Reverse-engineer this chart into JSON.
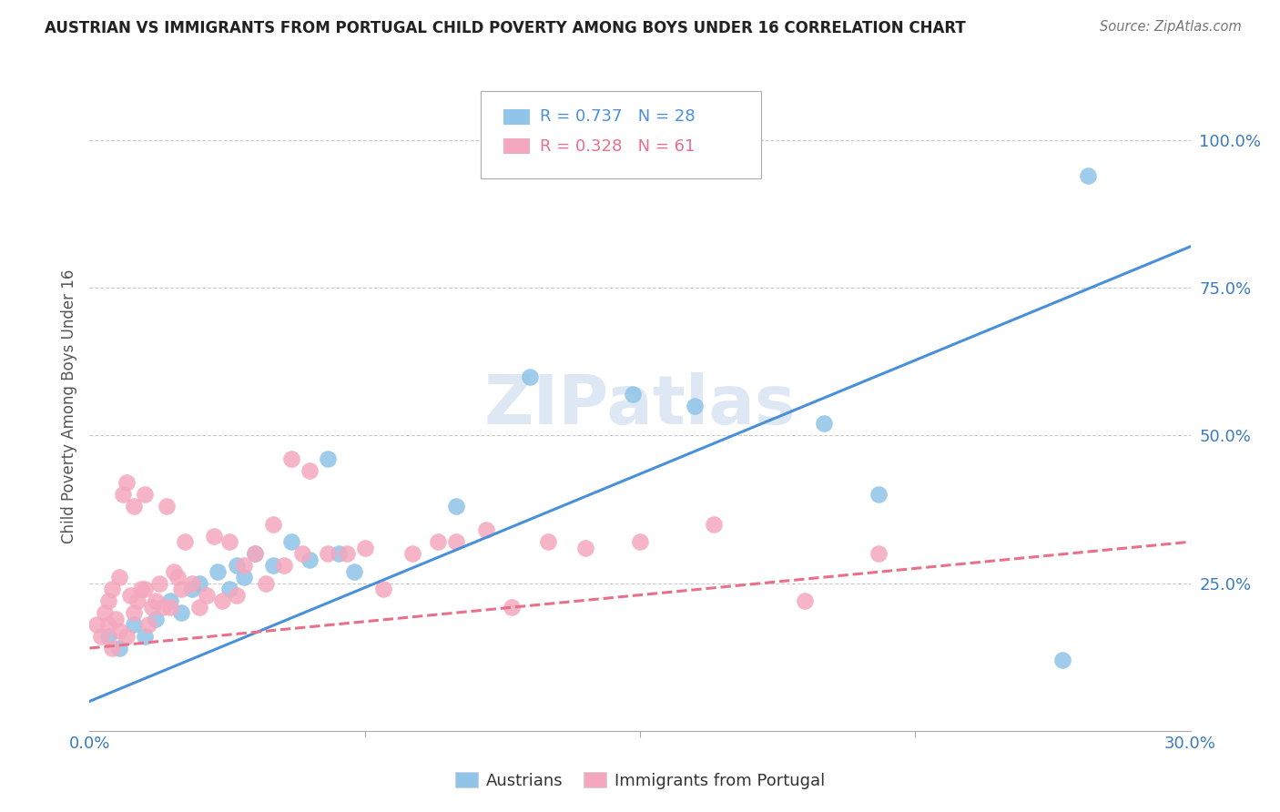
{
  "title": "AUSTRIAN VS IMMIGRANTS FROM PORTUGAL CHILD POVERTY AMONG BOYS UNDER 16 CORRELATION CHART",
  "source": "Source: ZipAtlas.com",
  "ylabel_label": "Child Poverty Among Boys Under 16",
  "legend_blue_R": "R = 0.737",
  "legend_blue_N": "N = 28",
  "legend_pink_R": "R = 0.328",
  "legend_pink_N": "N = 61",
  "legend_label_blue": "Austrians",
  "legend_label_pink": "Immigrants from Portugal",
  "blue_color": "#90c4e8",
  "pink_color": "#f4a8be",
  "blue_line_color": "#4a90d9",
  "pink_line_color": "#e8708a",
  "watermark": "ZIPatlas",
  "xmin": 0.0,
  "xmax": 0.3,
  "ymin": 0.0,
  "ymax": 1.1,
  "blue_line_x0": 0.0,
  "blue_line_y0": 0.05,
  "blue_line_x1": 0.3,
  "blue_line_y1": 0.82,
  "pink_line_x0": 0.0,
  "pink_line_y0": 0.14,
  "pink_line_x1": 0.3,
  "pink_line_y1": 0.32,
  "blue_scatter_x": [
    0.005,
    0.008,
    0.012,
    0.015,
    0.018,
    0.022,
    0.025,
    0.028,
    0.03,
    0.035,
    0.038,
    0.04,
    0.042,
    0.045,
    0.05,
    0.055,
    0.06,
    0.065,
    0.068,
    0.072,
    0.1,
    0.12,
    0.148,
    0.165,
    0.2,
    0.215,
    0.265,
    0.272
  ],
  "blue_scatter_y": [
    0.16,
    0.14,
    0.18,
    0.16,
    0.19,
    0.22,
    0.2,
    0.24,
    0.25,
    0.27,
    0.24,
    0.28,
    0.26,
    0.3,
    0.28,
    0.32,
    0.29,
    0.46,
    0.3,
    0.27,
    0.38,
    0.6,
    0.57,
    0.55,
    0.52,
    0.4,
    0.12,
    0.94
  ],
  "pink_scatter_x": [
    0.002,
    0.003,
    0.004,
    0.005,
    0.005,
    0.006,
    0.006,
    0.007,
    0.008,
    0.008,
    0.009,
    0.01,
    0.01,
    0.011,
    0.012,
    0.012,
    0.013,
    0.014,
    0.015,
    0.015,
    0.016,
    0.017,
    0.018,
    0.019,
    0.02,
    0.021,
    0.022,
    0.023,
    0.024,
    0.025,
    0.026,
    0.028,
    0.03,
    0.032,
    0.034,
    0.036,
    0.038,
    0.04,
    0.042,
    0.045,
    0.048,
    0.05,
    0.053,
    0.055,
    0.058,
    0.06,
    0.065,
    0.07,
    0.075,
    0.08,
    0.088,
    0.095,
    0.1,
    0.108,
    0.115,
    0.125,
    0.135,
    0.15,
    0.17,
    0.195,
    0.215
  ],
  "pink_scatter_y": [
    0.18,
    0.16,
    0.2,
    0.18,
    0.22,
    0.14,
    0.24,
    0.19,
    0.17,
    0.26,
    0.4,
    0.16,
    0.42,
    0.23,
    0.2,
    0.38,
    0.22,
    0.24,
    0.24,
    0.4,
    0.18,
    0.21,
    0.22,
    0.25,
    0.21,
    0.38,
    0.21,
    0.27,
    0.26,
    0.24,
    0.32,
    0.25,
    0.21,
    0.23,
    0.33,
    0.22,
    0.32,
    0.23,
    0.28,
    0.3,
    0.25,
    0.35,
    0.28,
    0.46,
    0.3,
    0.44,
    0.3,
    0.3,
    0.31,
    0.24,
    0.3,
    0.32,
    0.32,
    0.34,
    0.21,
    0.32,
    0.31,
    0.32,
    0.35,
    0.22,
    0.3
  ]
}
